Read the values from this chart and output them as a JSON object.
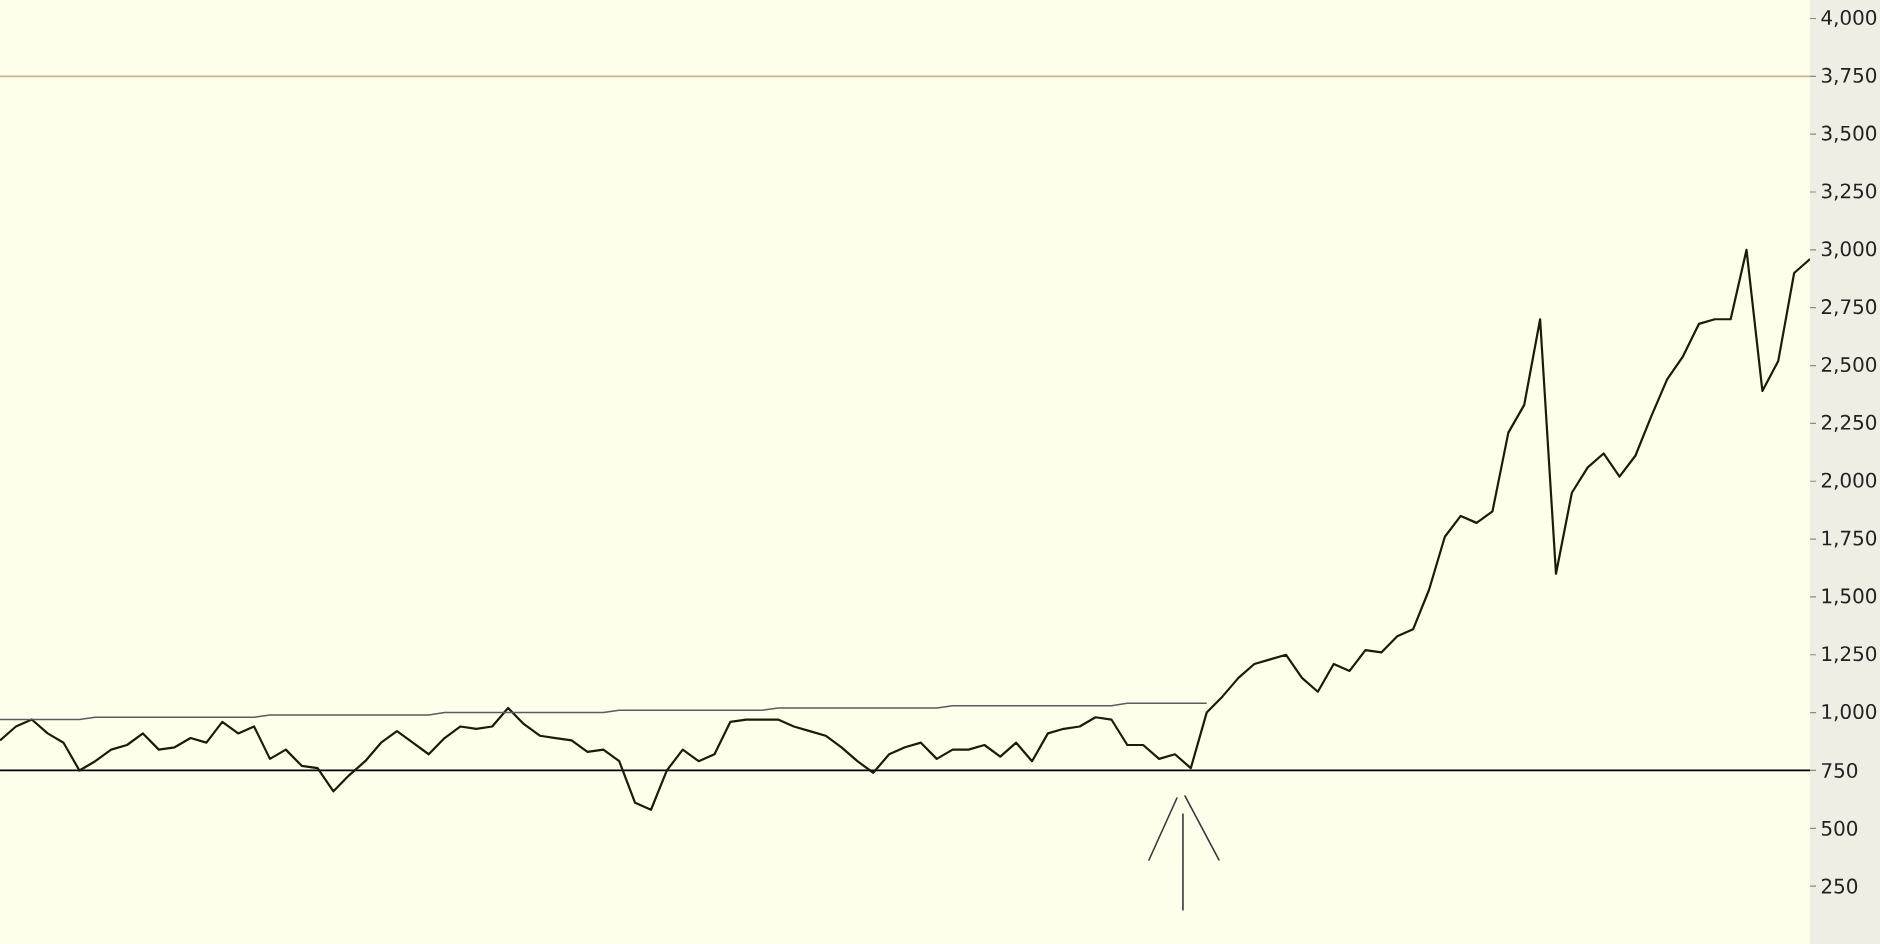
{
  "chart_data": {
    "type": "line",
    "categories": [
      null,
      null,
      null,
      null,
      null,
      null,
      null,
      null,
      null,
      null,
      null,
      null,
      null,
      null,
      null,
      null,
      null,
      null,
      null,
      null,
      null,
      null,
      null,
      null,
      null,
      null,
      null,
      null,
      null,
      null,
      null,
      null,
      null,
      null,
      null,
      null,
      null,
      null,
      null,
      null,
      null,
      null,
      null,
      null,
      null,
      null,
      null,
      null,
      null,
      null,
      null,
      null,
      null,
      null,
      null,
      null,
      null,
      null,
      null,
      null,
      null,
      null,
      null,
      null,
      null,
      null,
      null,
      null,
      null,
      null,
      null,
      null,
      null,
      null,
      null,
      null,
      null,
      null,
      null,
      null,
      null,
      null,
      null,
      null,
      null,
      null,
      null,
      null,
      null,
      null,
      null,
      null,
      null,
      null,
      null,
      null,
      null,
      null,
      null,
      null,
      null,
      null,
      null,
      null,
      null,
      null,
      null,
      null,
      null,
      null,
      null,
      null,
      null,
      null,
      null
    ],
    "series": [
      {
        "color": "#1e1a08",
        "values": [
          880,
          940,
          970,
          910,
          870,
          750,
          790,
          840,
          860,
          910,
          840,
          850,
          890,
          870,
          960,
          910,
          940,
          800,
          840,
          770,
          760,
          660,
          730,
          790,
          870,
          920,
          870,
          820,
          890,
          940,
          930,
          940,
          1020,
          950,
          900,
          890,
          880,
          830,
          840,
          790,
          610,
          580,
          750,
          840,
          790,
          820,
          960,
          970,
          970,
          970,
          940,
          920,
          900,
          850,
          790,
          740,
          820,
          850,
          870,
          800,
          840,
          840,
          860,
          810,
          870,
          790,
          910,
          930,
          940,
          980,
          970,
          860,
          860,
          800,
          820,
          760,
          1000,
          1070,
          1150,
          1210,
          1230,
          1250,
          1150,
          1090,
          1210,
          1180,
          1270,
          1260,
          1330,
          1360,
          1530,
          1760,
          1850,
          1820,
          1870,
          2210,
          2330,
          2700,
          1600,
          1950,
          2060,
          2120,
          2020,
          2110,
          2280,
          2440,
          2540,
          2680,
          2700,
          2700,
          3000,
          2390,
          2520,
          2900,
          2960
        ]
      },
      {
        "type": "line",
        "color": "#5c5c5c",
        "values": [
          970,
          970,
          970,
          970,
          970,
          970,
          980,
          980,
          980,
          980,
          980,
          980,
          980,
          980,
          980,
          980,
          980,
          990,
          990,
          990,
          990,
          990,
          990,
          990,
          990,
          990,
          990,
          990,
          1000,
          1000,
          1000,
          1000,
          1000,
          1000,
          1000,
          1000,
          1000,
          1000,
          1000,
          1010,
          1010,
          1010,
          1010,
          1010,
          1010,
          1010,
          1010,
          1010,
          1010,
          1020,
          1020,
          1020,
          1020,
          1020,
          1020,
          1020,
          1020,
          1020,
          1020,
          1020,
          1030,
          1030,
          1030,
          1030,
          1030,
          1030,
          1030,
          1030,
          1030,
          1030,
          1030,
          1040,
          1040,
          1040,
          1040,
          1040,
          1040,
          null,
          null,
          null,
          null,
          null,
          null,
          null,
          null,
          null,
          null,
          null,
          null,
          null,
          null,
          null,
          null,
          null,
          null,
          null,
          null,
          null,
          null,
          null,
          null,
          null,
          null,
          null,
          null,
          null,
          null,
          null,
          null,
          null,
          null,
          null,
          null,
          null,
          null
        ]
      }
    ],
    "ylim": [
      0,
      4080
    ],
    "yticks": [
      250,
      500,
      750,
      {
        "value": 1000,
        "label": "1,000"
      },
      {
        "value": 1250,
        "label": "1,250"
      },
      {
        "value": 1500,
        "label": "1,500"
      },
      {
        "value": 1750,
        "label": "1,750"
      },
      {
        "value": 2000,
        "label": "2,000"
      },
      {
        "value": 2250,
        "label": "2,250"
      },
      {
        "value": 2500,
        "label": "2,500"
      },
      {
        "value": 2750,
        "label": "2,750"
      },
      {
        "value": 3000,
        "label": "3,000"
      },
      {
        "value": 3250,
        "label": "3,250"
      },
      {
        "value": 3500,
        "label": "3,500"
      },
      {
        "value": 3750,
        "label": "3,750"
      },
      {
        "value": 4000,
        "label": "4,000"
      }
    ],
    "ref_lines": [
      {
        "axis": "y",
        "value": 3750,
        "color": "#c9b68f"
      },
      {
        "axis": "y",
        "value": 750,
        "color": "#000000"
      }
    ],
    "tick_labels": "y",
    "marker": "none"
  }
}
